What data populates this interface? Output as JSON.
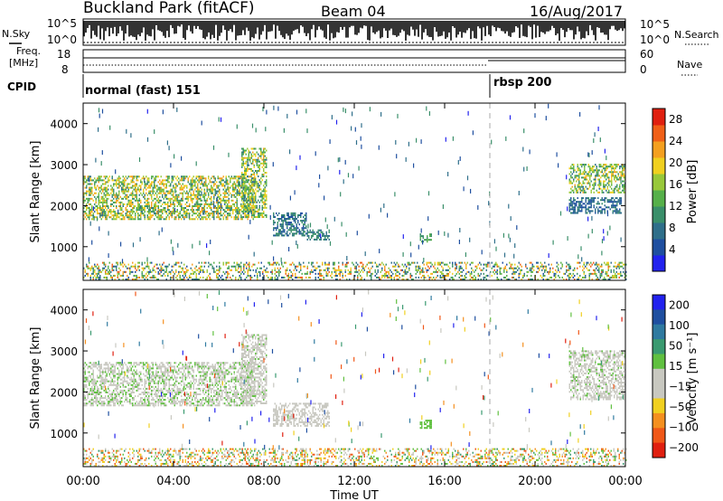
{
  "header": {
    "station": "Buckland Park (fitACF)",
    "beam": "Beam 04",
    "date": "16/Aug/2017"
  },
  "noise_panel": {
    "left_label": "N.Sky",
    "right_label": "N.Search",
    "left_ticks": [
      "10^5",
      "10^0"
    ],
    "right_ticks": [
      "10^5",
      "10^0"
    ]
  },
  "freq_panel": {
    "left_label_1": "Freq.",
    "left_label_2": "[MHz]",
    "left_ticks": [
      "18",
      "8"
    ],
    "right_ticks": [
      "60",
      "0"
    ],
    "right_label": "Nave"
  },
  "cpid_panel": {
    "label": "CPID",
    "segments": [
      {
        "name": "normal (fast) 151",
        "start_hour": 0
      },
      {
        "name": "rbsp 200",
        "start_hour": 18
      }
    ]
  },
  "x_axis": {
    "label": "Time UT",
    "ticks": [
      "00:00",
      "04:00",
      "08:00",
      "12:00",
      "16:00",
      "20:00",
      "00:00"
    ]
  },
  "colors": {
    "power": [
      "#2222ee",
      "#1f4fa0",
      "#2f6f8a",
      "#3a8f6a",
      "#56b04a",
      "#98c83a",
      "#f0d020",
      "#f4a020",
      "#f06018",
      "#e02010"
    ],
    "velocity": [
      "#2222ee",
      "#1f4fa0",
      "#2f7aa0",
      "#3a9a70",
      "#60c040",
      "#c8c8c0",
      "#c8c8c0",
      "#f0d020",
      "#f49020",
      "#f05818",
      "#e02010"
    ]
  },
  "chart_data": [
    {
      "type": "heatmap",
      "panel": "power",
      "ylabel": "Slant Range [km]",
      "xlabel": "",
      "xlim": [
        0,
        24
      ],
      "ylim": [
        180,
        4500
      ],
      "y_ticks": [
        "1000",
        "2000",
        "3000",
        "4000"
      ],
      "colorbar": {
        "label": "Power [dB]",
        "ticks": [
          "4",
          "8",
          "12",
          "16",
          "20",
          "24",
          "28"
        ],
        "range": [
          0,
          30
        ]
      },
      "echo_regions": [
        {
          "t_start": 0.0,
          "t_end": 7.6,
          "range_lo": 1650,
          "range_hi": 2700,
          "value_lo": 8,
          "value_hi": 24
        },
        {
          "t_start": 7.0,
          "t_end": 8.1,
          "range_lo": 1700,
          "range_hi": 3400,
          "value_lo": 8,
          "value_hi": 22
        },
        {
          "t_start": 8.4,
          "t_end": 9.9,
          "range_lo": 1250,
          "range_hi": 1800,
          "value_lo": 4,
          "value_hi": 12
        },
        {
          "t_start": 9.9,
          "t_end": 10.9,
          "range_lo": 1150,
          "range_hi": 1400,
          "value_lo": 6,
          "value_hi": 12
        },
        {
          "t_start": 14.9,
          "t_end": 15.4,
          "range_lo": 1100,
          "range_hi": 1300,
          "value_lo": 10,
          "value_hi": 14
        },
        {
          "t_start": 21.5,
          "t_end": 24.0,
          "range_lo": 2300,
          "range_hi": 3000,
          "value_lo": 8,
          "value_hi": 22
        },
        {
          "t_start": 21.5,
          "t_end": 23.8,
          "range_lo": 1800,
          "range_hi": 2200,
          "value_lo": 4,
          "value_hi": 10
        },
        {
          "t_start": 0.0,
          "t_end": 24.0,
          "range_lo": 180,
          "range_hi": 600,
          "value_lo": 4,
          "value_hi": 26
        }
      ]
    },
    {
      "type": "heatmap",
      "panel": "velocity",
      "ylabel": "Slant Range [km]",
      "xlabel": "Time UT",
      "xlim": [
        0,
        24
      ],
      "ylim": [
        180,
        4500
      ],
      "y_ticks": [
        "1000",
        "2000",
        "3000",
        "4000"
      ],
      "colorbar": {
        "label": "Velocity [m s⁻¹]",
        "ticks": [
          "200",
          "100",
          "50",
          "15",
          "−15",
          "−50",
          "−100",
          "−200"
        ]
      },
      "echo_regions": [
        {
          "t_start": 0.0,
          "t_end": 7.6,
          "range_lo": 1650,
          "range_hi": 2700,
          "value_lo": -50,
          "value_hi": 50
        },
        {
          "t_start": 7.0,
          "t_end": 8.1,
          "range_lo": 1700,
          "range_hi": 3400,
          "value_lo": -30,
          "value_hi": 30
        },
        {
          "t_start": 8.4,
          "t_end": 10.9,
          "range_lo": 1150,
          "range_hi": 1700,
          "value_lo": -20,
          "value_hi": 20
        },
        {
          "t_start": 14.9,
          "t_end": 15.4,
          "range_lo": 1100,
          "range_hi": 1300,
          "value_lo": 40,
          "value_hi": 60
        },
        {
          "t_start": 21.5,
          "t_end": 24.0,
          "range_lo": 1800,
          "range_hi": 3000,
          "value_lo": -30,
          "value_hi": 30
        },
        {
          "t_start": 0.0,
          "t_end": 24.0,
          "range_lo": 180,
          "range_hi": 600,
          "value_lo": -200,
          "value_hi": 100
        }
      ]
    }
  ]
}
